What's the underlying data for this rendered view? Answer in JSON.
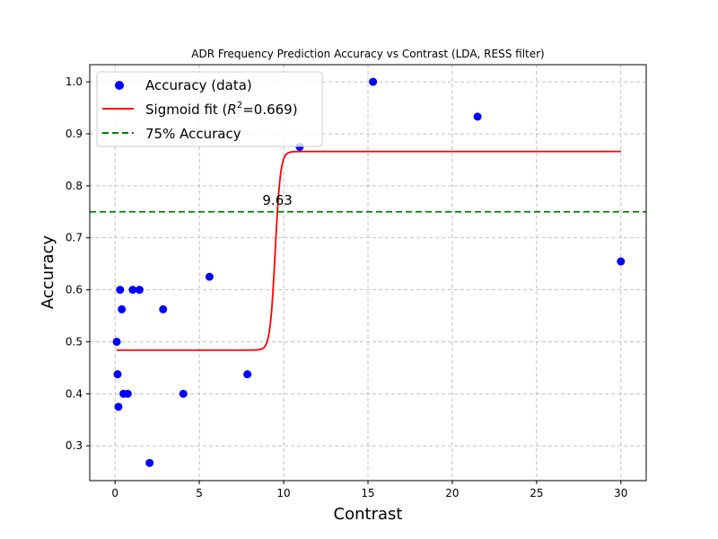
{
  "chart_data": {
    "type": "scatter",
    "title": "ADR Frequency Prediction Accuracy vs Contrast (LDA,  RESS filter)",
    "xlabel": "Contrast",
    "ylabel": "Accuracy",
    "xlim": [
      -1.5,
      31.5
    ],
    "ylim": [
      0.233,
      1.033
    ],
    "xticks": [
      0,
      5,
      10,
      15,
      20,
      25,
      30
    ],
    "yticks": [
      0.3,
      0.4,
      0.5,
      0.6,
      0.7,
      0.8,
      0.9,
      1.0
    ],
    "xtick_labels": [
      "0",
      "5",
      "10",
      "15",
      "20",
      "25",
      "30"
    ],
    "ytick_labels": [
      "0.3",
      "0.4",
      "0.5",
      "0.6",
      "0.7",
      "0.8",
      "0.9",
      "1.0"
    ],
    "grid": true,
    "legend_position": "top-left",
    "series": [
      {
        "name": "Accuracy (data)",
        "kind": "scatter",
        "color": "#0000ff",
        "points": [
          {
            "x": 0.1,
            "y": 0.5
          },
          {
            "x": 0.15,
            "y": 0.4375
          },
          {
            "x": 0.2,
            "y": 0.375
          },
          {
            "x": 0.3,
            "y": 0.6
          },
          {
            "x": 0.4,
            "y": 0.5625
          },
          {
            "x": 0.5,
            "y": 0.4
          },
          {
            "x": 0.75,
            "y": 0.4
          },
          {
            "x": 1.05,
            "y": 0.6
          },
          {
            "x": 1.45,
            "y": 0.6
          },
          {
            "x": 2.05,
            "y": 0.267
          },
          {
            "x": 2.85,
            "y": 0.5625
          },
          {
            "x": 4.05,
            "y": 0.4
          },
          {
            "x": 5.6,
            "y": 0.625
          },
          {
            "x": 7.85,
            "y": 0.4375
          },
          {
            "x": 10.95,
            "y": 0.875
          },
          {
            "x": 15.3,
            "y": 1.0
          },
          {
            "x": 21.5,
            "y": 0.933
          },
          {
            "x": 30.0,
            "y": 0.6545
          }
        ]
      },
      {
        "name": "Sigmoid fit ($R^2$=0.669)",
        "legend_main": "Sigmoid fit (",
        "legend_r": "R",
        "legend_sup": "2",
        "legend_tail": "=0.669)",
        "kind": "sigmoid",
        "color": "#ff0000",
        "lower": 0.484,
        "upper": 0.866,
        "midpoint": 9.5,
        "slope": 6.5,
        "x_range": [
          0.1,
          30.0
        ]
      },
      {
        "name": "75% Accuracy",
        "kind": "hline",
        "color": "#008000",
        "y": 0.75
      }
    ],
    "annotations": [
      {
        "text": "9.63",
        "x": 9.63,
        "y": 0.75
      }
    ]
  }
}
